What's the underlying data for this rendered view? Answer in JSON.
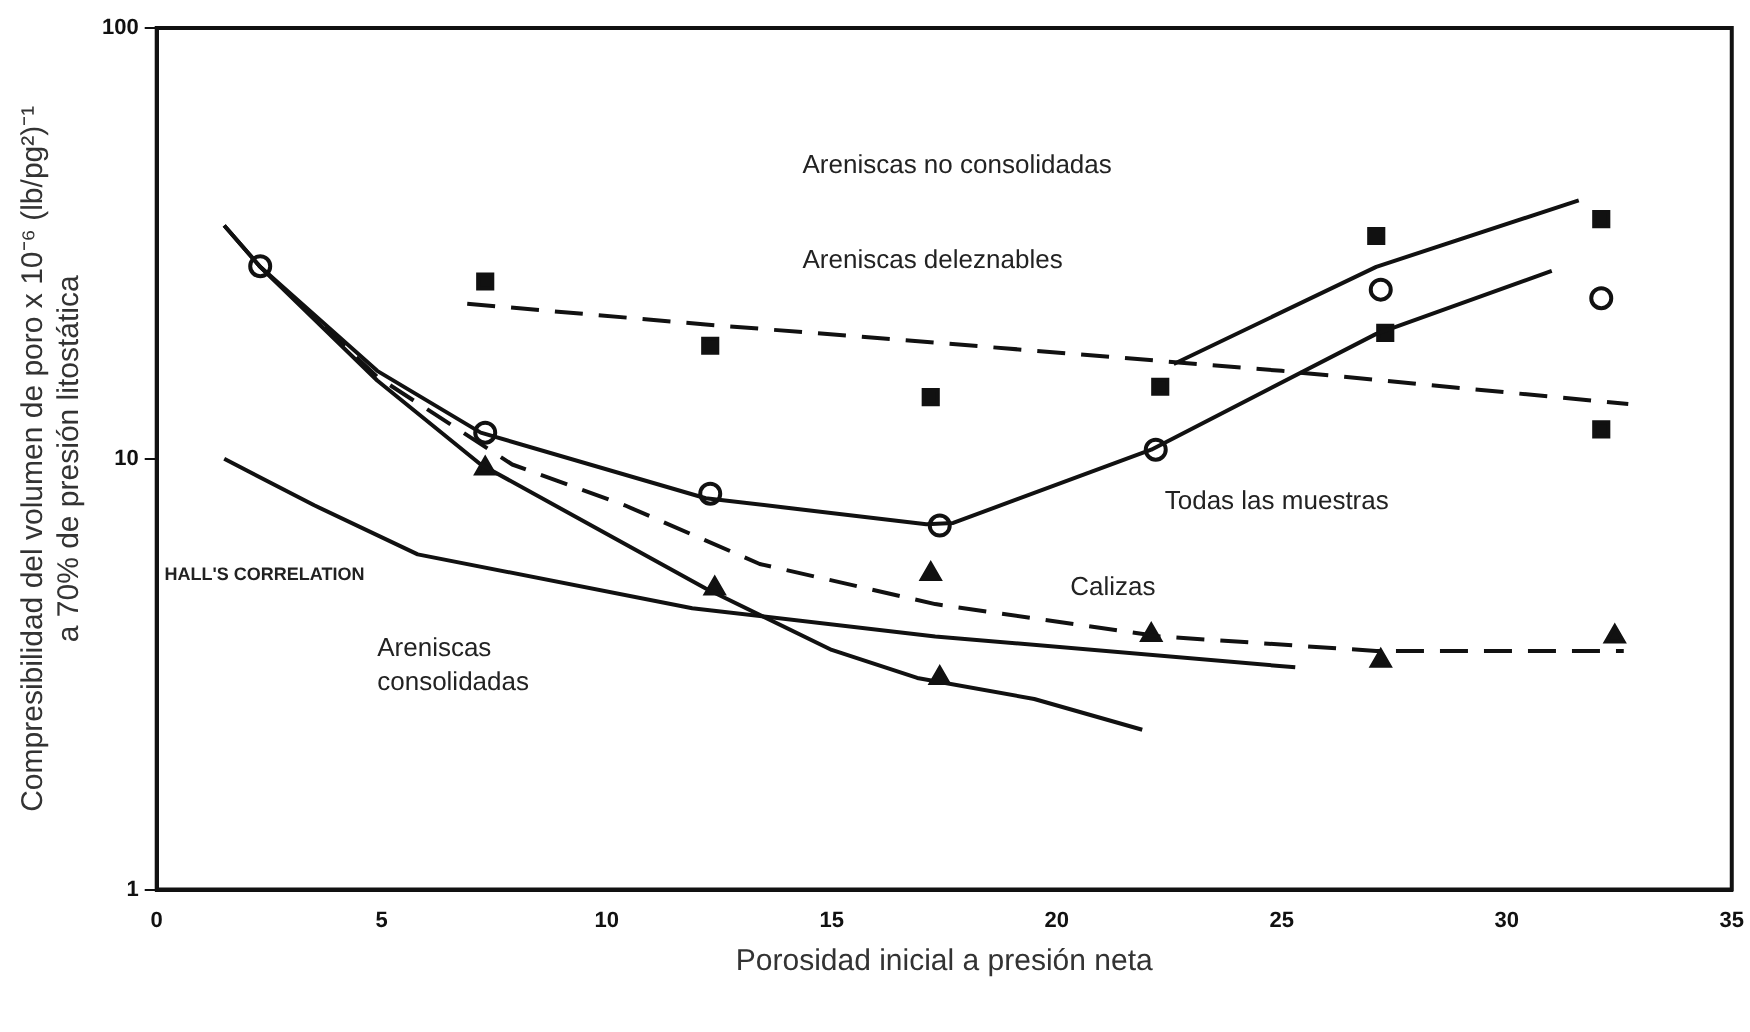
{
  "chart_data": {
    "type": "line",
    "xlabel": "Porosidad inicial a presión neta",
    "ylabel": "Compresibilidad del volumen de poro x 10⁻⁶ (lb/pg²)⁻¹\na 70% de presión litostática",
    "log": "y",
    "grid": false,
    "legend": false,
    "xlim": [
      0,
      35
    ],
    "xticks": [
      0,
      5,
      10,
      15,
      20,
      25,
      30,
      35
    ],
    "ylim": [
      1,
      100
    ],
    "yticks": [
      1,
      10,
      100
    ],
    "series": [
      {
        "color": "#111111",
        "line_style": "solid",
        "marker": "none",
        "x": [
          1.5,
          2.3,
          4.9,
          7.2,
          12.2,
          15,
          16.9,
          19.5,
          21.9
        ],
        "values": [
          34.8,
          27.9,
          15.2,
          9.7,
          5.0,
          3.6,
          3.1,
          2.77,
          2.35
        ]
      },
      {
        "color": "#111111",
        "line_style": "solid",
        "marker": "none",
        "x": [
          1.5,
          2.3,
          4.9,
          7.2,
          12.2,
          17.1,
          17.7,
          22.1,
          27.1,
          31
        ],
        "values": [
          34.8,
          27.9,
          16,
          11.5,
          8.1,
          7.05,
          7.1,
          10.5,
          19.5,
          27.3
        ]
      },
      {
        "color": "#111111",
        "line_style": "solid",
        "marker": "none",
        "x": [
          22.6,
          27.1,
          31.6
        ],
        "values": [
          16.6,
          27.9,
          39.8
        ]
      },
      {
        "color": "#111111",
        "line_style": "dashed",
        "marker": "none",
        "x": [
          6.9,
          12.2,
          16.5,
          25,
          32.7
        ],
        "values": [
          22.9,
          20.5,
          18.9,
          16,
          13.4
        ]
      },
      {
        "color": "#111111",
        "line_style": "dashed",
        "marker": "none",
        "x": [
          2.3,
          4.9,
          7.9,
          10.4,
          13.4,
          17.3,
          22.3,
          27.1,
          32.6
        ],
        "values": [
          27.9,
          15.5,
          9.7,
          7.8,
          5.7,
          4.6,
          3.87,
          3.58,
          3.58
        ]
      },
      {
        "color": "#111111",
        "line_style": "solid",
        "marker": "none",
        "x": [
          1.5,
          3.5,
          5.8,
          11.9,
          17.3,
          25.3
        ],
        "values": [
          10,
          7.8,
          6.0,
          4.5,
          3.87,
          3.28
        ]
      },
      {
        "type": "scatter",
        "color": "#111111",
        "marker": "square",
        "x": [
          7.3,
          12.3,
          17.2,
          22.3,
          27.3,
          27.1,
          32.1,
          32.1
        ],
        "values": [
          25.8,
          18.3,
          13.9,
          14.7,
          19.6,
          32.9,
          36,
          11.7
        ]
      },
      {
        "type": "scatter",
        "color": "#111111",
        "marker": "circle",
        "x": [
          2.3,
          7.3,
          12.3,
          17.4,
          22.2,
          27.2,
          32.1
        ],
        "values": [
          28,
          11.5,
          8.3,
          7.0,
          10.5,
          24.7,
          23.6
        ]
      },
      {
        "type": "scatter",
        "color": "#111111",
        "marker": "triangle",
        "x": [
          7.3,
          12.4,
          17.4,
          17.2,
          22.1,
          27.2,
          32.4
        ],
        "values": [
          9.5,
          5.0,
          3.1,
          5.4,
          3.9,
          3.4,
          3.87
        ]
      }
    ],
    "annotations": [
      "Areniscas no consolidadas",
      "Areniscas deleznables",
      "Todas las muestras",
      "Calizas",
      "Areniscas\nconsolidadas",
      "HALL'S CORRELATION"
    ]
  }
}
